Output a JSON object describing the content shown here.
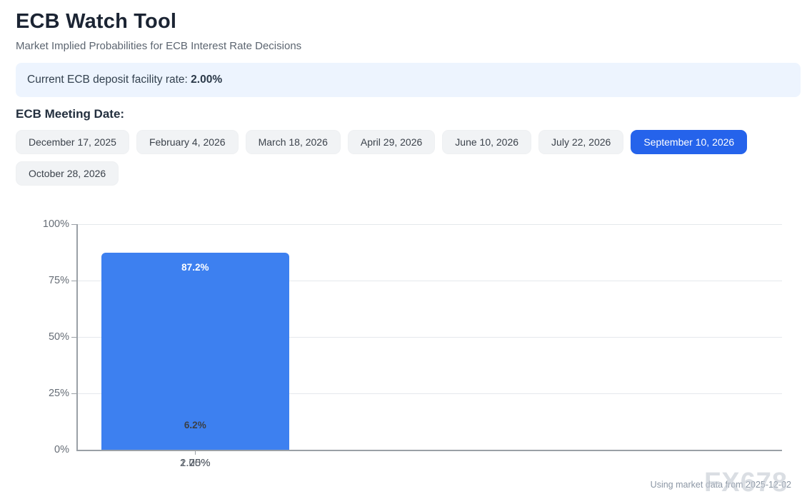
{
  "page": {
    "title": "ECB Watch Tool",
    "subtitle": "Market Implied Probabilities for ECB Interest Rate Decisions"
  },
  "info_bar": {
    "label": "Current ECB deposit facility rate: ",
    "value": "2.00%"
  },
  "meeting_dates": {
    "heading": "ECB Meeting Date:",
    "options": [
      {
        "label": "December 17, 2025",
        "selected": false
      },
      {
        "label": "February 4, 2026",
        "selected": false
      },
      {
        "label": "March 18, 2026",
        "selected": false
      },
      {
        "label": "April 29, 2026",
        "selected": false
      },
      {
        "label": "June 10, 2026",
        "selected": false
      },
      {
        "label": "July 22, 2026",
        "selected": false
      },
      {
        "label": "September 10, 2026",
        "selected": true
      },
      {
        "label": "October 28, 2026",
        "selected": false
      }
    ]
  },
  "chart_data": {
    "type": "bar",
    "title": "",
    "xlabel": "",
    "ylabel": "",
    "categories": [
      "1.75%",
      "2.00%",
      "2.25%"
    ],
    "values": [
      6.4,
      87.2,
      6.2
    ],
    "value_labels": [
      "6.4%",
      "87.2%",
      "6.2%"
    ],
    "y_ticks": [
      "0%",
      "25%",
      "50%",
      "75%",
      "100%"
    ],
    "ylim": [
      0,
      100
    ],
    "grid": "horizontal",
    "legend_position": "none",
    "bar_color": "#3d80f0"
  },
  "footer": {
    "note": "Using market data from 2025-12-02",
    "watermark": "FX678"
  },
  "colors": {
    "selected_button": "#2563eb",
    "bar_blue": "#3d80f0",
    "info_banner_bg": "#edf4fe",
    "heading_text": "#1b2433"
  }
}
